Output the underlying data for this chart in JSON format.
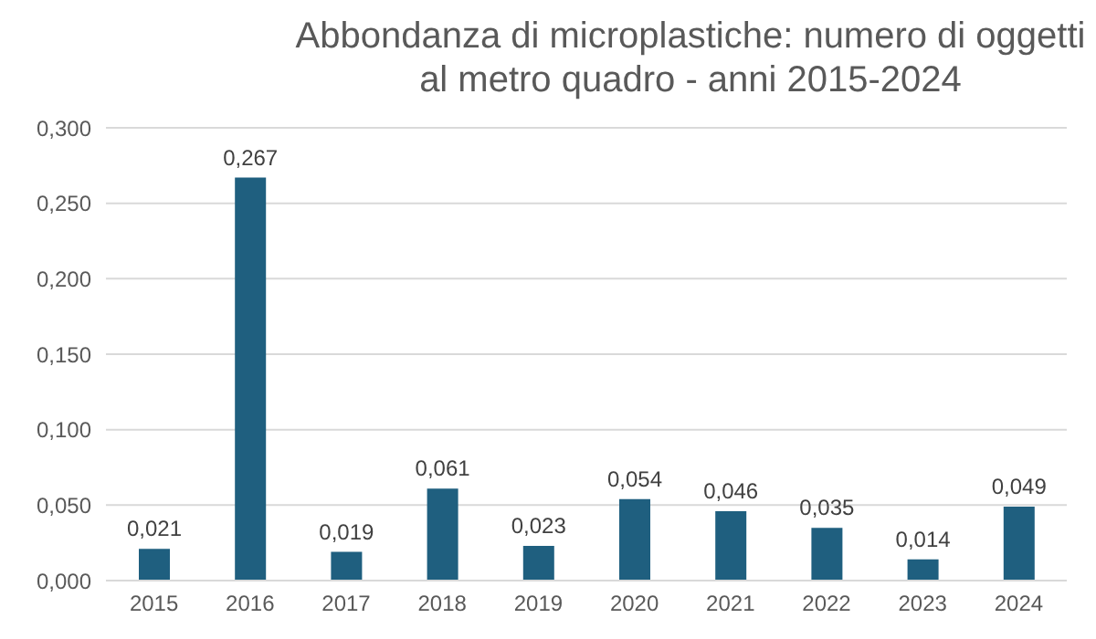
{
  "chart_data": {
    "type": "bar",
    "title": "Abbondanza di microplastiche: numero di oggetti al metro quadro - anni 2015-2024",
    "categories": [
      "2015",
      "2016",
      "2017",
      "2018",
      "2019",
      "2020",
      "2021",
      "2022",
      "2023",
      "2024"
    ],
    "values": [
      0.021,
      0.267,
      0.019,
      0.061,
      0.023,
      0.054,
      0.046,
      0.035,
      0.014,
      0.049
    ],
    "value_labels": [
      "0,021",
      "0,267",
      "0,019",
      "0,061",
      "0,023",
      "0,054",
      "0,046",
      "0,035",
      "0,014",
      "0,049"
    ],
    "color": "#1f5f7f",
    "ylim": [
      0,
      0.3
    ],
    "yticks": [
      {
        "value": 0,
        "label": "0,000"
      },
      {
        "value": 0.05,
        "label": "0,050"
      },
      {
        "value": 0.1,
        "label": "0,100"
      },
      {
        "value": 0.15,
        "label": "0,150"
      },
      {
        "value": 0.2,
        "label": "0,200"
      },
      {
        "value": 0.25,
        "label": "0,250"
      },
      {
        "value": 0.3,
        "label": "0,300"
      }
    ],
    "grid": "y"
  }
}
